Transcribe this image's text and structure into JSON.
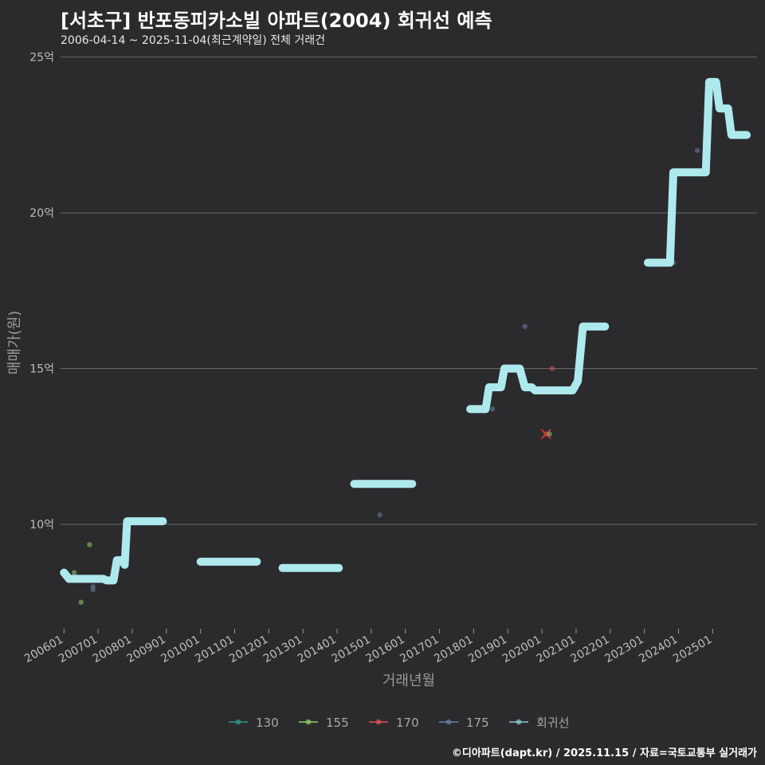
{
  "chart_data": {
    "type": "line",
    "title": "[서초구] 반포동피카소빌 아파트(2004) 회귀선 예측",
    "subtitle": "2006-04-14 ~ 2025-11-04(최근계약일) 전체 거래건",
    "xlabel": "거래년월",
    "ylabel": "매매가(원)",
    "caption": "©디아파트(dapt.kr) / 2025.11.15 / 자료=국토교통부 실거래가",
    "xlim": [
      2005.9,
      2026.3
    ],
    "ylim": [
      6.7,
      25.4
    ],
    "y_ticks": [
      10,
      15,
      20,
      25
    ],
    "y_tick_labels": [
      "10억",
      "15억",
      "20억",
      "25억"
    ],
    "x_ticks": [
      2006,
      2007,
      2008,
      2009,
      2010,
      2011,
      2012,
      2013,
      2014,
      2015,
      2016,
      2017,
      2018,
      2019,
      2020,
      2021,
      2022,
      2023,
      2024,
      2025
    ],
    "x_tick_labels": [
      "200601",
      "200701",
      "200801",
      "200901",
      "201001",
      "201101",
      "201201",
      "201301",
      "201401",
      "201501",
      "201601",
      "201701",
      "201801",
      "201901",
      "202001",
      "202101",
      "202201",
      "202301",
      "202401",
      "202501"
    ],
    "grid": true,
    "legend_position": "bottom",
    "legend": [
      {
        "name": "130",
        "color": "#2a9d8f"
      },
      {
        "name": "155",
        "color": "#8fd16a"
      },
      {
        "name": "170",
        "color": "#e05252"
      },
      {
        "name": "175",
        "color": "#6c7fa6"
      },
      {
        "name": "회귀선",
        "color": "#8ec9d6"
      }
    ],
    "points": [
      {
        "series": "155",
        "x": 2006.3,
        "y": 8.45
      },
      {
        "series": "155",
        "x": 2006.5,
        "y": 7.5
      },
      {
        "series": "155",
        "x": 2006.75,
        "y": 9.35
      },
      {
        "series": "175",
        "x": 2006.85,
        "y": 8.0
      },
      {
        "series": "175",
        "x": 2006.85,
        "y": 7.9
      },
      {
        "series": "175",
        "x": 2015.25,
        "y": 10.3
      },
      {
        "series": "175",
        "x": 2018.55,
        "y": 13.7
      },
      {
        "series": "175",
        "x": 2019.5,
        "y": 16.35
      },
      {
        "series": "170",
        "x": 2020.3,
        "y": 15.0
      },
      {
        "series": "170",
        "x": 2020.12,
        "y": 12.9,
        "cancelled": true
      },
      {
        "series": "155",
        "x": 2020.22,
        "y": 12.9
      },
      {
        "series": "175",
        "x": 2023.85,
        "y": 18.4
      },
      {
        "series": "175",
        "x": 2024.55,
        "y": 22.0
      }
    ],
    "regression": {
      "name": "회귀선",
      "color": "#aee9ee",
      "segments": [
        [
          [
            2006.0,
            8.45
          ],
          [
            2006.15,
            8.25
          ],
          [
            2007.15,
            8.25
          ],
          [
            2007.25,
            8.2
          ],
          [
            2007.45,
            8.2
          ],
          [
            2007.55,
            8.85
          ],
          [
            2007.7,
            8.85
          ],
          [
            2007.78,
            8.7
          ],
          [
            2007.85,
            10.1
          ],
          [
            2008.9,
            10.1
          ]
        ],
        [
          [
            2010.0,
            8.8
          ],
          [
            2011.65,
            8.8
          ]
        ],
        [
          [
            2012.4,
            8.6
          ],
          [
            2014.05,
            8.6
          ]
        ],
        [
          [
            2014.5,
            11.3
          ],
          [
            2016.2,
            11.3
          ]
        ],
        [
          [
            2017.9,
            13.7
          ],
          [
            2018.35,
            13.7
          ],
          [
            2018.45,
            14.4
          ],
          [
            2018.8,
            14.4
          ],
          [
            2018.9,
            15.0
          ],
          [
            2019.35,
            15.0
          ],
          [
            2019.5,
            14.4
          ],
          [
            2019.7,
            14.4
          ],
          [
            2019.8,
            14.3
          ],
          [
            2020.9,
            14.3
          ],
          [
            2021.05,
            14.6
          ],
          [
            2021.2,
            16.35
          ],
          [
            2021.85,
            16.35
          ]
        ],
        [
          [
            2023.1,
            18.4
          ],
          [
            2023.75,
            18.4
          ],
          [
            2023.85,
            21.3
          ],
          [
            2024.8,
            21.3
          ],
          [
            2024.9,
            24.2
          ],
          [
            2025.1,
            24.2
          ],
          [
            2025.2,
            23.35
          ],
          [
            2025.45,
            23.35
          ],
          [
            2025.55,
            22.5
          ],
          [
            2026.0,
            22.5
          ]
        ]
      ]
    }
  }
}
